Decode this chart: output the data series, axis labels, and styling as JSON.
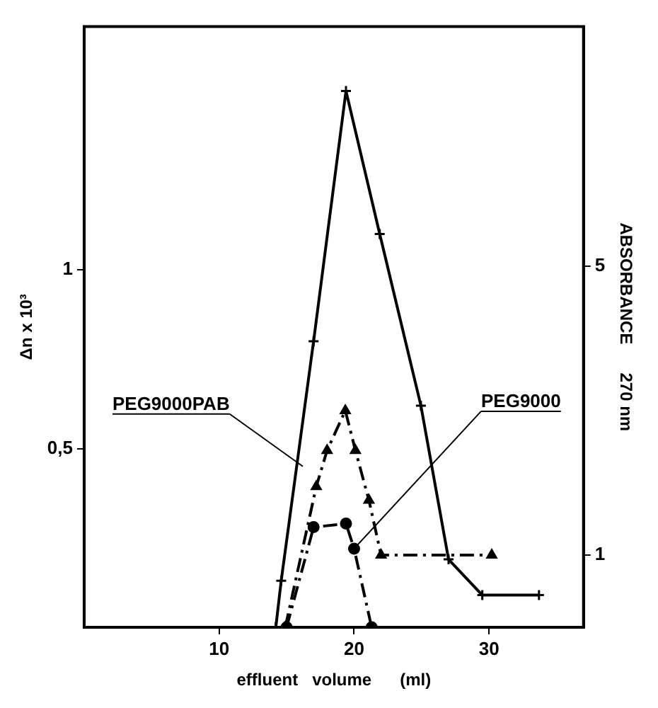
{
  "chart_data": {
    "type": "line",
    "xlabel": "effluent   volume      (ml)",
    "ylabel": "Δn x 10³",
    "y2label": "ABSORBANCE      270 nm",
    "xlim": [
      0,
      37
    ],
    "xticks": [
      10,
      20,
      30
    ],
    "ylim": [
      0,
      1.68
    ],
    "yticks": [
      {
        "value": 0.5,
        "label": "0,5"
      },
      1
    ],
    "y2lim": [
      0,
      8.32
    ],
    "y2ticks": [
      1,
      5
    ],
    "grid": false,
    "legend": false,
    "series": [
      {
        "color": "#000000",
        "marker": "cross",
        "line_style": "solid",
        "x": [
          14.2,
          14.6,
          17.0,
          19.4,
          21.9,
          24.95,
          27.0,
          29.5,
          33.7
        ],
        "values": [
          0,
          0.13,
          0.8,
          1.5,
          1.1,
          0.62,
          0.19,
          0.09,
          0.09
        ]
      },
      {
        "color": "#000000",
        "marker": "triangle",
        "line_style": "dashed",
        "axis": "y2",
        "x": [
          14.9,
          17.2,
          18.0,
          19.35,
          20.1,
          21.1,
          22.0,
          30.2
        ],
        "values": [
          0,
          1.95,
          2.45,
          3.0,
          2.45,
          1.76,
          1.0,
          1.0
        ]
      },
      {
        "color": "#000000",
        "marker": "circle",
        "line_style": "dashed",
        "x": [
          15.0,
          17.0,
          19.4,
          20.0,
          21.3
        ],
        "values": [
          0,
          0.28,
          0.29,
          0.22,
          0
        ]
      }
    ],
    "annotations": [
      {
        "text": "PEG9000PAB",
        "x": 16.2,
        "y": 0.45
      },
      {
        "text": "PEG9000",
        "x": 20.0,
        "y": 0.22
      }
    ]
  }
}
